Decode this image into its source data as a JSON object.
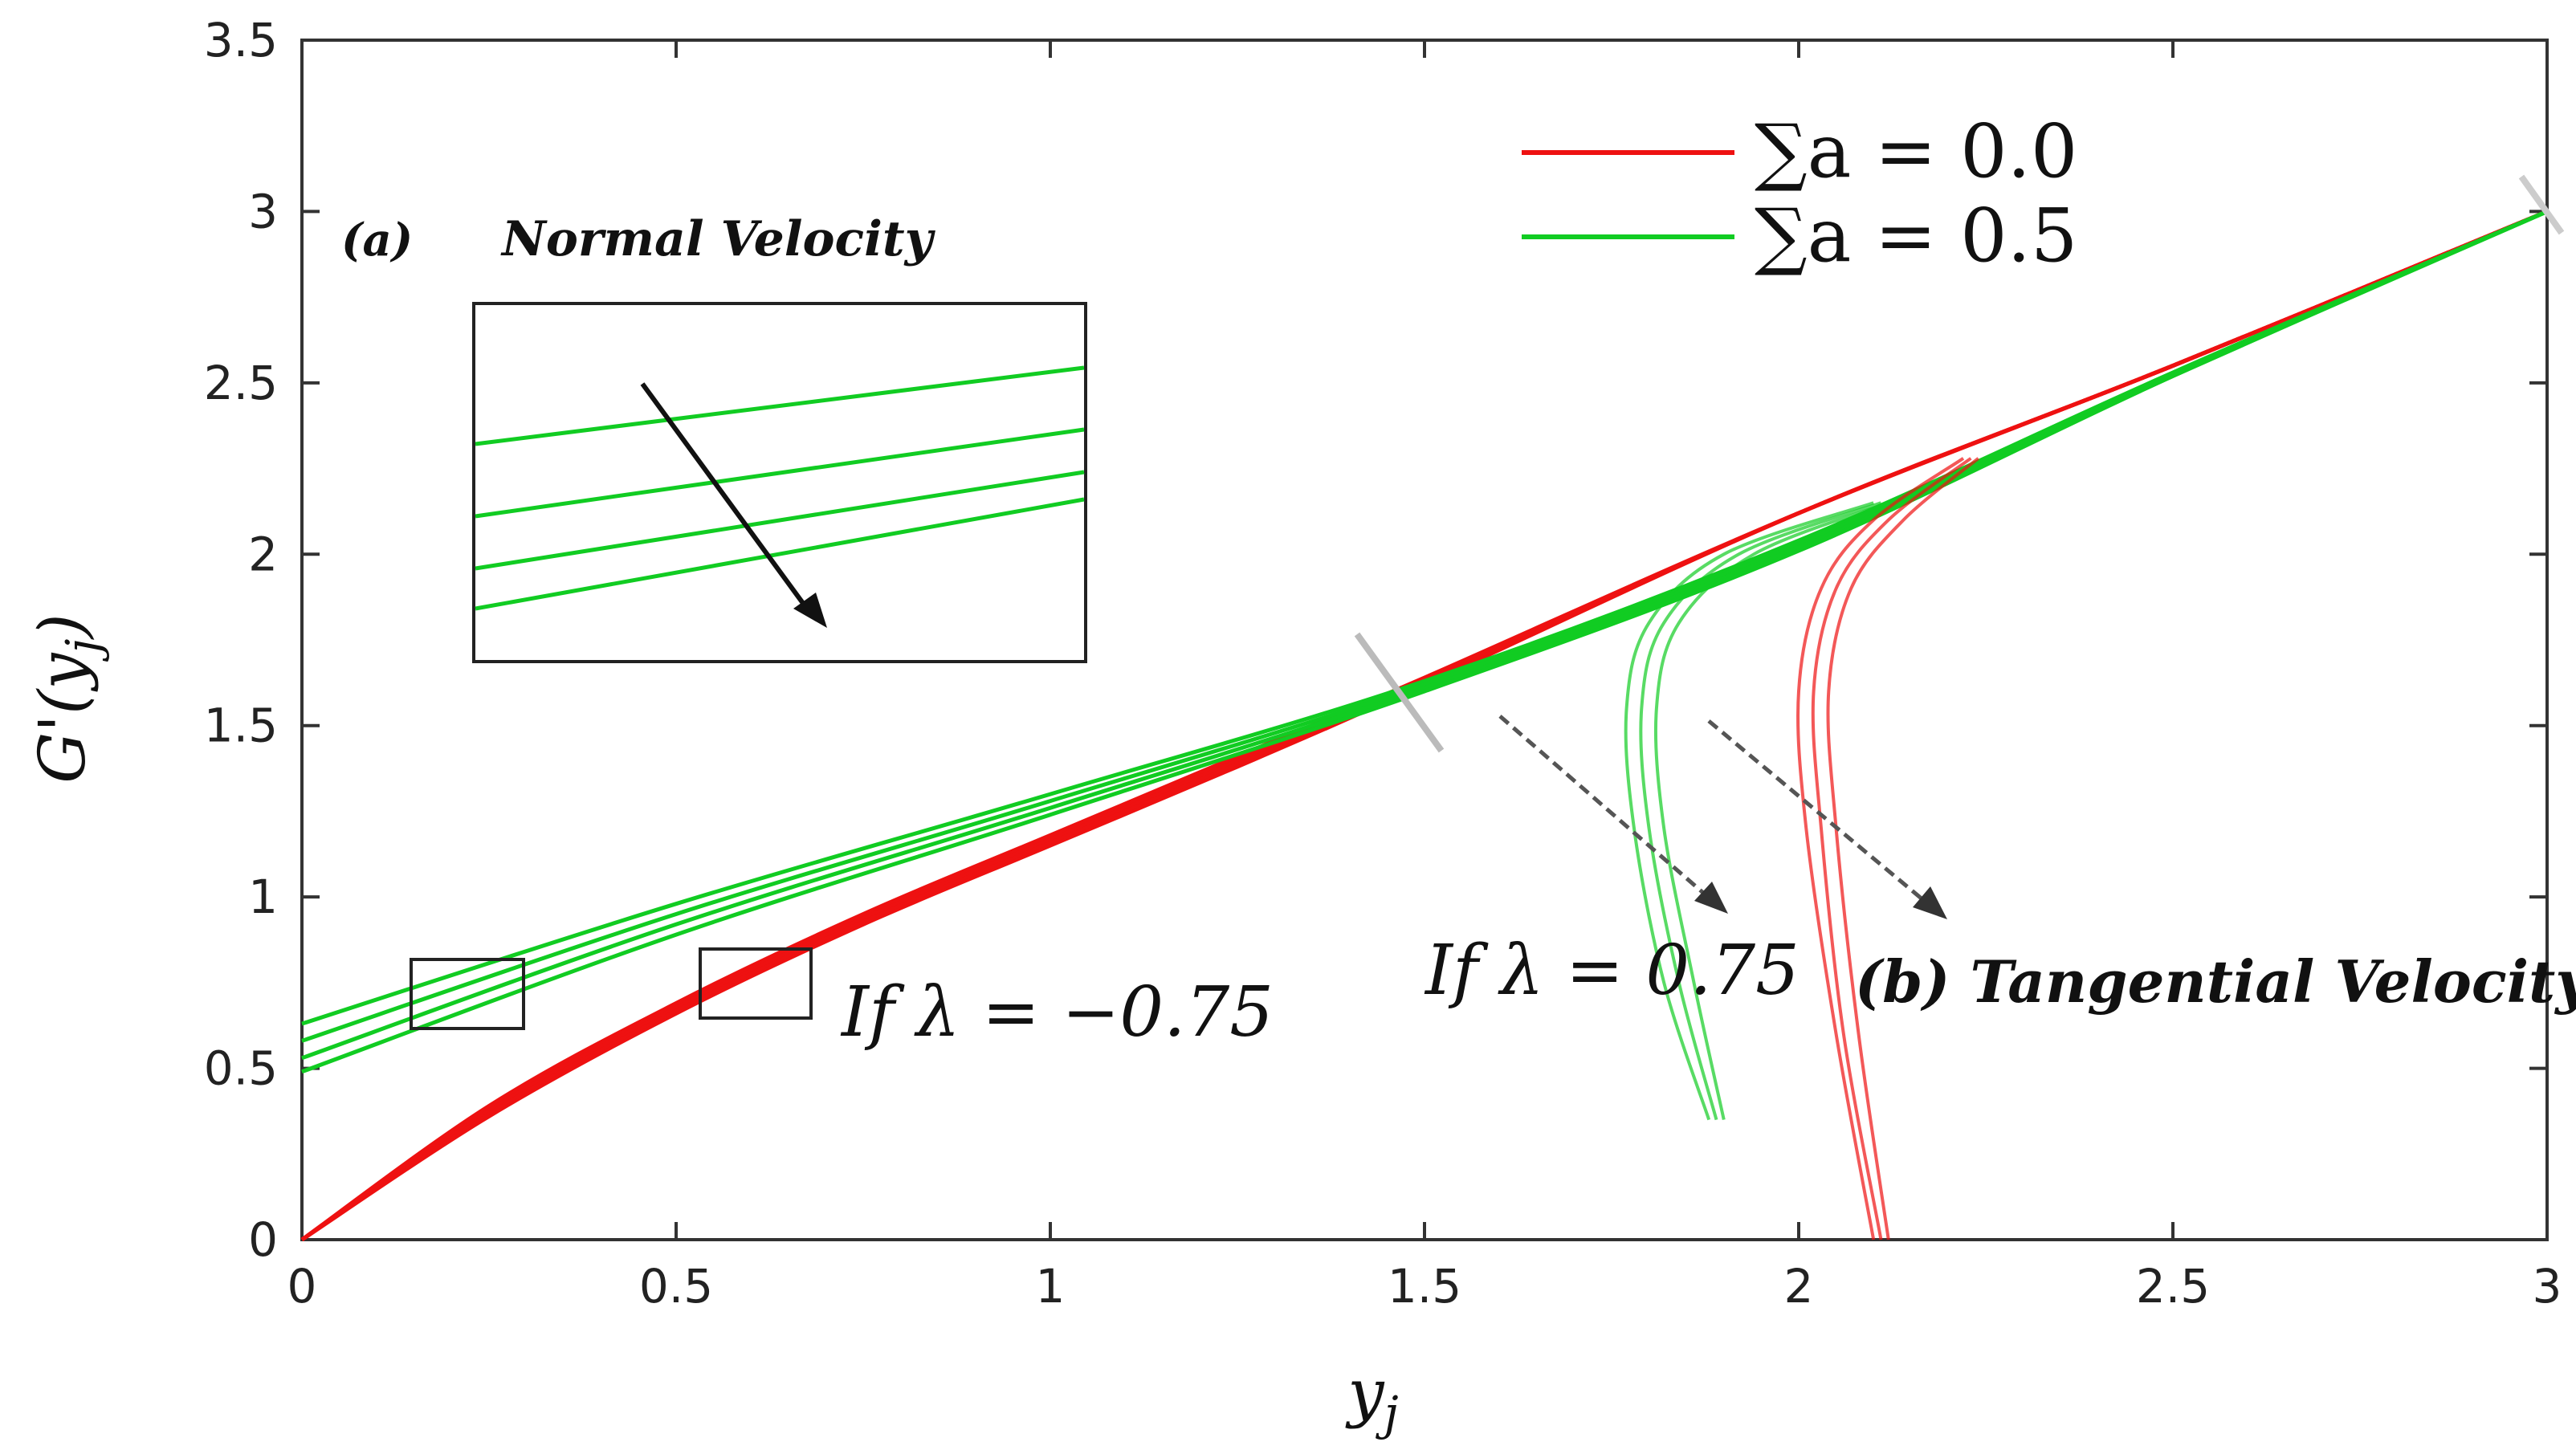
{
  "chart_data": {
    "type": "line",
    "xlabel": "y_j",
    "ylabel": "G'(y_j)",
    "xlim": [
      0,
      3
    ],
    "ylim": [
      0,
      3.5
    ],
    "x_ticks": [
      "0",
      "0.5",
      "1",
      "1.5",
      "2",
      "2.5",
      "3"
    ],
    "y_ticks": [
      "0",
      "0.5",
      "1",
      "1.5",
      "2",
      "2.5",
      "3",
      "3.5"
    ],
    "grid": false,
    "legend_position": "top-right",
    "legend": [
      {
        "label": "∑a = 0.0",
        "color": "#ee1111"
      },
      {
        "label": "∑a = 0.5",
        "color": "#11cc22"
      }
    ],
    "annotations": {
      "panel_a": "(a)",
      "normal_velocity": "Normal Velocity",
      "tangential_velocity": "(b) Tangential Velocity",
      "lambda_neg": "If λ = −0.75",
      "lambda_pos": "If λ = 0.75"
    },
    "series": [
      {
        "group": "∑a = 0.0",
        "branch": "λ = −0.75",
        "x": [
          0,
          0.25,
          0.5,
          0.75,
          1.0,
          1.25,
          1.5,
          2.0,
          2.5,
          3.0
        ],
        "y": [
          0,
          0.36,
          0.66,
          0.92,
          1.15,
          1.38,
          1.62,
          2.12,
          2.55,
          3.0
        ]
      },
      {
        "group": "∑a = 0.0",
        "branch": "λ = −0.75",
        "x": [
          0,
          0.25,
          0.5,
          0.75,
          1.0,
          1.25,
          1.5,
          2.0,
          2.5,
          3.0
        ],
        "y": [
          0,
          0.37,
          0.67,
          0.93,
          1.16,
          1.39,
          1.63,
          2.12,
          2.55,
          3.0
        ]
      },
      {
        "group": "∑a = 0.0",
        "branch": "λ = −0.75",
        "x": [
          0,
          0.25,
          0.5,
          0.75,
          1.0,
          1.25,
          1.5,
          2.0,
          2.5,
          3.0
        ],
        "y": [
          0,
          0.38,
          0.68,
          0.94,
          1.17,
          1.4,
          1.63,
          2.12,
          2.55,
          3.0
        ]
      },
      {
        "group": "∑a = 0.0",
        "branch": "λ = −0.75",
        "x": [
          0,
          0.25,
          0.5,
          0.75,
          1.0,
          1.25,
          1.5,
          2.0,
          2.5,
          3.0
        ],
        "y": [
          0,
          0.39,
          0.69,
          0.95,
          1.18,
          1.41,
          1.64,
          2.12,
          2.55,
          3.0
        ]
      },
      {
        "group": "∑a = 0.5",
        "branch": "λ = −0.75",
        "x": [
          0,
          0.5,
          1.0,
          1.5,
          2.0,
          2.5,
          3.0
        ],
        "y": [
          0.63,
          0.98,
          1.3,
          1.63,
          2.04,
          2.53,
          3.0
        ]
      },
      {
        "group": "∑a = 0.5",
        "branch": "λ = −0.75",
        "x": [
          0,
          0.5,
          1.0,
          1.5,
          2.0,
          2.5,
          3.0
        ],
        "y": [
          0.58,
          0.95,
          1.28,
          1.62,
          2.03,
          2.53,
          3.0
        ]
      },
      {
        "group": "∑a = 0.5",
        "branch": "λ = −0.75",
        "x": [
          0,
          0.5,
          1.0,
          1.5,
          2.0,
          2.5,
          3.0
        ],
        "y": [
          0.53,
          0.92,
          1.26,
          1.61,
          2.02,
          2.52,
          3.0
        ]
      },
      {
        "group": "∑a = 0.5",
        "branch": "λ = −0.75",
        "x": [
          0,
          0.5,
          1.0,
          1.5,
          2.0,
          2.5,
          3.0
        ],
        "y": [
          0.49,
          0.89,
          1.24,
          1.6,
          2.01,
          2.52,
          3.0
        ]
      },
      {
        "group": "∑a = 0.0",
        "branch": "λ = 0.75",
        "x": [
          2.1,
          2.05,
          2.01,
          2.0,
          2.03,
          2.1,
          2.22
        ],
        "y": [
          0,
          0.6,
          1.2,
          1.6,
          1.9,
          2.1,
          2.28
        ]
      },
      {
        "group": "∑a = 0.0",
        "branch": "λ = 0.75",
        "x": [
          2.11,
          2.06,
          2.03,
          2.02,
          2.05,
          2.12,
          2.23
        ],
        "y": [
          0,
          0.6,
          1.2,
          1.6,
          1.9,
          2.1,
          2.28
        ]
      },
      {
        "group": "∑a = 0.0",
        "branch": "λ = 0.75",
        "x": [
          2.12,
          2.08,
          2.05,
          2.04,
          2.07,
          2.14,
          2.24
        ],
        "y": [
          0,
          0.6,
          1.2,
          1.6,
          1.9,
          2.1,
          2.28
        ]
      },
      {
        "group": "∑a = 0.5",
        "branch": "λ = 0.75",
        "x": [
          1.88,
          1.82,
          1.78,
          1.77,
          1.8,
          1.9,
          2.1
        ],
        "y": [
          0.35,
          0.75,
          1.2,
          1.55,
          1.8,
          2.0,
          2.15
        ]
      },
      {
        "group": "∑a = 0.5",
        "branch": "λ = 0.75",
        "x": [
          1.89,
          1.84,
          1.8,
          1.79,
          1.82,
          1.92,
          2.11
        ],
        "y": [
          0.35,
          0.75,
          1.2,
          1.55,
          1.8,
          2.0,
          2.15
        ]
      },
      {
        "group": "∑a = 0.5",
        "branch": "λ = 0.75",
        "x": [
          1.9,
          1.86,
          1.82,
          1.81,
          1.84,
          1.94,
          2.12
        ],
        "y": [
          0.35,
          0.75,
          1.2,
          1.55,
          1.8,
          2.0,
          2.15
        ]
      }
    ]
  }
}
